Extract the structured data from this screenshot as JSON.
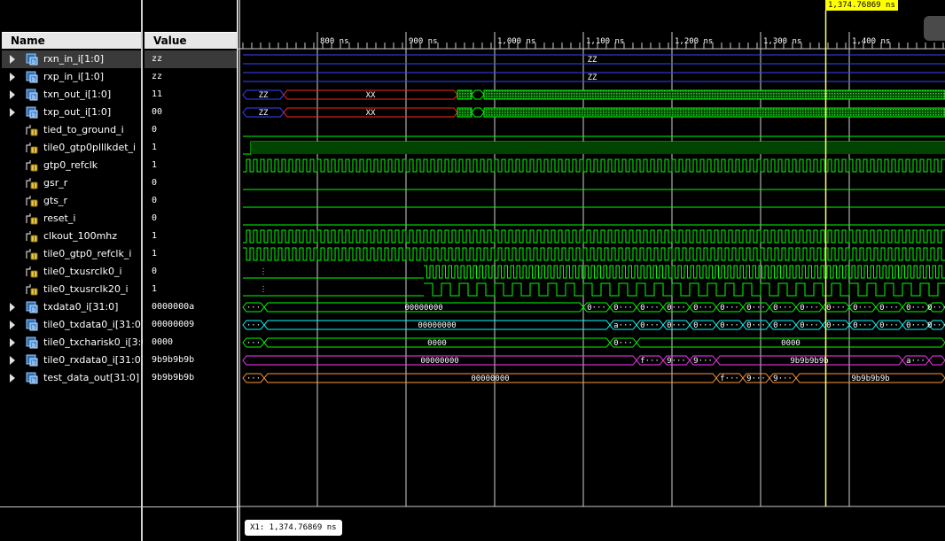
{
  "headers": {
    "name": "Name",
    "value": "Value"
  },
  "signals": [
    {
      "name": "rxn_in_i[1:0]",
      "value": "zz",
      "bus": true,
      "selected": true
    },
    {
      "name": "rxp_in_i[1:0]",
      "value": "zz",
      "bus": true
    },
    {
      "name": "txn_out_i[1:0]",
      "value": "11",
      "bus": true
    },
    {
      "name": "txp_out_i[1:0]",
      "value": "00",
      "bus": true
    },
    {
      "name": "tied_to_ground_i",
      "value": "0",
      "bus": false
    },
    {
      "name": "tile0_gtp0plllkdet_i",
      "value": "1",
      "bus": false
    },
    {
      "name": "gtp0_refclk",
      "value": "1",
      "bus": false
    },
    {
      "name": "gsr_r",
      "value": "0",
      "bus": false
    },
    {
      "name": "gts_r",
      "value": "0",
      "bus": false
    },
    {
      "name": "reset_i",
      "value": "0",
      "bus": false
    },
    {
      "name": "clkout_100mhz",
      "value": "1",
      "bus": false
    },
    {
      "name": "tile0_gtp0_refclk_i",
      "value": "1",
      "bus": false
    },
    {
      "name": "tile0_txusrclk0_i",
      "value": "0",
      "bus": false
    },
    {
      "name": "tile0_txusrclk20_i",
      "value": "1",
      "bus": false
    },
    {
      "name": "txdata0_i[31:0]",
      "value": "0000000a",
      "bus": true
    },
    {
      "name": "tile0_txdata0_i[31:0]",
      "value": "00000009",
      "bus": true
    },
    {
      "name": "tile0_txcharisk0_i[3:0]",
      "value": "0000",
      "bus": true
    },
    {
      "name": "tile0_rxdata0_i[31:0]",
      "value": "9b9b9b9b",
      "bus": true
    },
    {
      "name": "test_data_out[31:0]",
      "value": "9b9b9b9b",
      "bus": true
    }
  ],
  "ruler": {
    "labels": [
      "800 ns",
      "900 ns",
      "1,000 ns",
      "1,100 ns",
      "1,200 ns",
      "1,300 ns",
      "1,400 ns"
    ],
    "range_ns": [
      716,
      1509
    ]
  },
  "cursor": {
    "time_ns": 1374.76869,
    "label": "1,374.76869 ns",
    "x1_label": "X1: 1,374.76869 ns"
  },
  "waves": {
    "rxn_bus": {
      "label": "ZZ"
    },
    "rxp_bus": {
      "label": "ZZ"
    },
    "txn_bus": {
      "labels": [
        "ZZ",
        "XX"
      ]
    },
    "txp_bus": {
      "labels": [
        "ZZ",
        "XX"
      ]
    },
    "txdata0": {
      "first": "···",
      "main": "00000000",
      "seq": [
        "0···",
        "0···",
        "0···",
        "0···",
        "0···",
        "0···",
        "0···",
        "0···",
        "0···",
        "0···",
        "0···",
        "0···",
        "0···",
        "0···"
      ]
    },
    "tile0_txdata0": {
      "first": "···",
      "main": "00000000",
      "seq": [
        "a···",
        "0···",
        "0···",
        "0···",
        "0···",
        "0···",
        "0···",
        "0···",
        "0···",
        "0···",
        "0···",
        "0···",
        "0···"
      ]
    },
    "tile0_txcharisk0": {
      "first": "···",
      "main": "0000",
      "mid": "0···",
      "end": "0000"
    },
    "tile0_rxdata0": {
      "main": "00000000",
      "seq": [
        "f···",
        "9···",
        "9···"
      ],
      "end": "9b9b9b9b",
      "tail": "a···"
    },
    "test_data_out": {
      "first": "···",
      "main": "00000000",
      "seq": [
        "f···",
        "9···",
        "9···"
      ],
      "end": "9b9b9b9b"
    }
  },
  "colors": {
    "bus": "#00ff00",
    "bus_z": "#3344ff",
    "bus_x": "#ff2222",
    "bus_mag": "#ff33ff",
    "bus_cyan": "#00ffff",
    "cursor": "#ffff66",
    "grid": "#cfcfcf"
  }
}
